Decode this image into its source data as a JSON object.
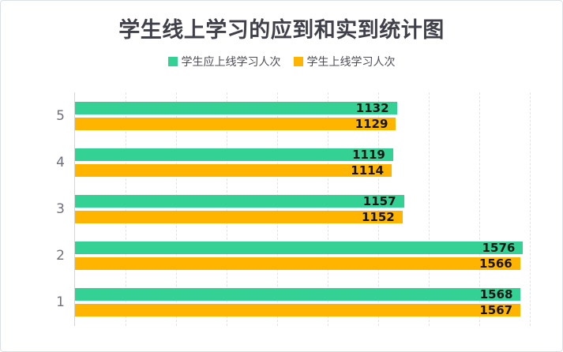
{
  "title": "学生线上学习的应到和实到统计图",
  "chart_data": {
    "type": "bar",
    "orientation": "horizontal",
    "title": "学生线上学习的应到和实到统计图",
    "categories_order": "top-to-bottom",
    "categories": [
      "5",
      "4",
      "3",
      "2",
      "1"
    ],
    "series": [
      {
        "id": "expected",
        "name": "学生应上线学习人次",
        "color": "#33d294",
        "values": [
          1132,
          1119,
          1157,
          1576,
          1568
        ]
      },
      {
        "id": "actual",
        "name": "学生上线学习人次",
        "color": "#ffb400",
        "values": [
          1129,
          1114,
          1152,
          1566,
          1567
        ]
      }
    ],
    "xlim": [
      0,
      1600
    ],
    "grid": {
      "style": "dashed-vertical",
      "vertical_divisions": 9,
      "color": "#e3e3e5"
    },
    "legend_position": "top",
    "value_labels": "inside-end",
    "axis_line_color": "#d5d5d8"
  }
}
